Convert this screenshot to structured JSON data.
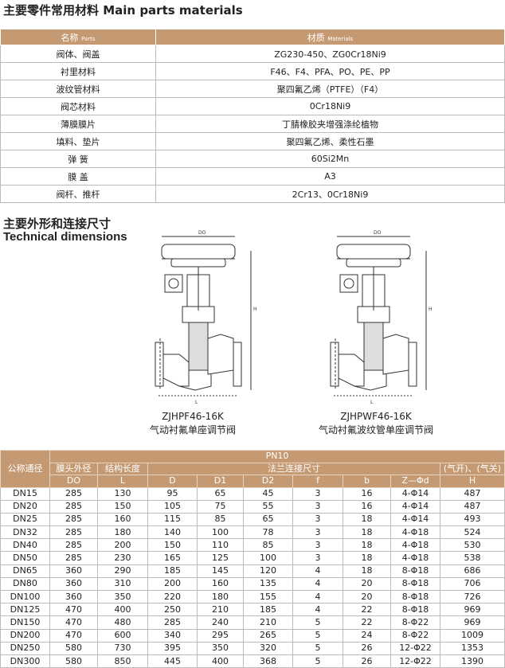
{
  "materials": {
    "title": "主要零件常用材料 Main parts materials",
    "header": [
      {
        "name": "名称",
        "en": "Parts"
      },
      {
        "name": "材质",
        "en": "Materials"
      }
    ],
    "rows": [
      [
        "阀体、阀盖",
        "ZG230-450、ZG0Cr18Ni9"
      ],
      [
        "衬里材料",
        "F46、F4、PFA、PO、PE、PP"
      ],
      [
        "波纹管材料",
        "聚四氟乙烯（PTFE）（F4）"
      ],
      [
        "阀芯材料",
        "0Cr18Ni9"
      ],
      [
        "薄膜膜片",
        "丁腈橡胶夹增强涤纶植物"
      ],
      [
        "填料、垫片",
        "聚四氟乙烯、柔性石墨"
      ],
      [
        "弹 簧",
        "60Si2Mn"
      ],
      [
        "膜 盖",
        "A3"
      ],
      [
        "阀杆、推杆",
        "2Cr13、0Cr18Ni9"
      ]
    ]
  },
  "dimensions_section": {
    "title_cn": "主要外形和连接尺寸",
    "title_en": "Technical dimensions",
    "diagrams": [
      {
        "model": "ZJHPF46-16K",
        "name": "气动衬氟单座调节阀",
        "labels": [
          "DO",
          "H",
          "L"
        ]
      },
      {
        "model": "ZJHPWF46-16K",
        "name": "气动衬氟波纹管单座调节阀",
        "labels": [
          "DO",
          "H",
          "L"
        ]
      }
    ]
  },
  "dimensions": {
    "pressure": "PN10",
    "group_headers": [
      "公称通径",
      "膜头外径",
      "结构长度",
      "法兰连接尺寸",
      "(气开)、(气关)"
    ],
    "columns": [
      "DO",
      "L",
      "D",
      "D1",
      "D2",
      "f",
      "b",
      "Z—Φd",
      "H"
    ],
    "rows": [
      [
        "DN15",
        "285",
        "130",
        "95",
        "65",
        "45",
        "3",
        "16",
        "4-Φ14",
        "487"
      ],
      [
        "DN20",
        "285",
        "150",
        "105",
        "75",
        "55",
        "3",
        "16",
        "4-Φ14",
        "487"
      ],
      [
        "DN25",
        "285",
        "160",
        "115",
        "85",
        "65",
        "3",
        "18",
        "4-Φ14",
        "493"
      ],
      [
        "DN32",
        "285",
        "180",
        "140",
        "100",
        "78",
        "3",
        "18",
        "4-Φ18",
        "524"
      ],
      [
        "DN40",
        "285",
        "200",
        "150",
        "110",
        "85",
        "3",
        "18",
        "4-Φ18",
        "530"
      ],
      [
        "DN50",
        "285",
        "230",
        "165",
        "125",
        "100",
        "3",
        "18",
        "4-Φ18",
        "538"
      ],
      [
        "DN65",
        "360",
        "290",
        "185",
        "145",
        "120",
        "4",
        "18",
        "8-Φ18",
        "686"
      ],
      [
        "DN80",
        "360",
        "310",
        "200",
        "160",
        "135",
        "4",
        "20",
        "8-Φ18",
        "706"
      ],
      [
        "DN100",
        "360",
        "350",
        "220",
        "180",
        "155",
        "4",
        "20",
        "8-Φ18",
        "726"
      ],
      [
        "DN125",
        "470",
        "400",
        "250",
        "210",
        "185",
        "4",
        "22",
        "8-Φ18",
        "969"
      ],
      [
        "DN150",
        "470",
        "480",
        "285",
        "240",
        "210",
        "5",
        "22",
        "8-Φ22",
        "969"
      ],
      [
        "DN200",
        "470",
        "600",
        "340",
        "295",
        "265",
        "5",
        "24",
        "8-Φ22",
        "1009"
      ],
      [
        "DN250",
        "580",
        "730",
        "395",
        "350",
        "320",
        "5",
        "26",
        "12-Φ22",
        "1353"
      ],
      [
        "DN300",
        "580",
        "850",
        "445",
        "400",
        "368",
        "5",
        "26",
        "12-Φ22",
        "1390"
      ]
    ]
  }
}
